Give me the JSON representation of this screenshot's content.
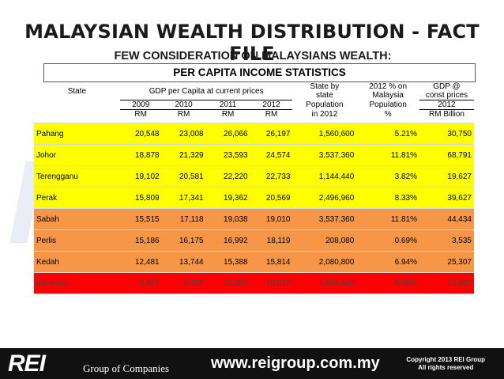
{
  "title": "MALAYSIAN WEALTH DISTRIBUTION - FACT FILE",
  "subtitle": "FEW CONSIDERATION ON MALAYSIANS WEALTH:",
  "table_title": "PER CAPITA INCOME STATISTICS",
  "headers": {
    "state": "State",
    "gdp_per_capita": "GDP per Capita at current prices",
    "years": [
      "2009",
      "2010",
      "2011",
      "2012"
    ],
    "rm": "RM",
    "population_l1": "State by",
    "population_l2": "state",
    "population_l3": "Population",
    "population_l4": "in 2012",
    "pct_l1": "2012 % on",
    "pct_l2": "Malaysia",
    "pct_l3": "Population",
    "pct_l4": "%",
    "gdp_l1": "GDP @",
    "gdp_l2": "const prices",
    "gdp_l3": "2012",
    "gdp_l4": "RM Billion"
  },
  "rows": [
    {
      "state": "Pahang",
      "y2009": "20,548",
      "y2010": "23,008",
      "y2011": "26,066",
      "y2012": "26,197",
      "population": "1,560,600",
      "pct": "5.21%",
      "gdp": "30,750",
      "color": "#ffff00"
    },
    {
      "state": "Johor",
      "y2009": "18,878",
      "y2010": "21,329",
      "y2011": "23,593",
      "y2012": "24,574",
      "population": "3,537,360",
      "pct": "11.81%",
      "gdp": "68,791",
      "color": "#ffff00"
    },
    {
      "state": "Terengganu",
      "y2009": "19,102",
      "y2010": "20,581",
      "y2011": "22,220",
      "y2012": "22,733",
      "population": "1,144,440",
      "pct": "3.82%",
      "gdp": "19,627",
      "color": "#ffff00"
    },
    {
      "state": "Perak",
      "y2009": "15,809",
      "y2010": "17,341",
      "y2011": "19,362",
      "y2012": "20,569",
      "population": "2,496,960",
      "pct": "8.33%",
      "gdp": "39,627",
      "color": "#ffff00"
    },
    {
      "state": "Sabah",
      "y2009": "15,515",
      "y2010": "17,118",
      "y2011": "19,038",
      "y2012": "19,010",
      "population": "3,537,360",
      "pct": "11.81%",
      "gdp": "44,434",
      "color": "#f79646"
    },
    {
      "state": "Perlis",
      "y2009": "15,186",
      "y2010": "16,175",
      "y2011": "16,992",
      "y2012": "18,119",
      "population": "208,080",
      "pct": "0.69%",
      "gdp": "3,535",
      "color": "#f79646"
    },
    {
      "state": "Kedah",
      "y2009": "12,481",
      "y2010": "13,744",
      "y2011": "15,388",
      "y2012": "15,814",
      "population": "2,080,800",
      "pct": "6.94%",
      "gdp": "25,307",
      "color": "#f79646"
    },
    {
      "state": "Kelantan",
      "y2009": "8,421",
      "y2010": "9,322",
      "y2011": "10,366",
      "y2012": "10,617",
      "population": "1,664,640",
      "pct": "5.56%",
      "gdp": "13,461",
      "color": "#ff0000"
    }
  ],
  "footer": {
    "logo": "REI",
    "group": "Group of Companies",
    "url": "www.reigroup.com.my",
    "copyright_l1": "Copyright 2013 REI Group",
    "copyright_l2": "All rights reserved"
  }
}
